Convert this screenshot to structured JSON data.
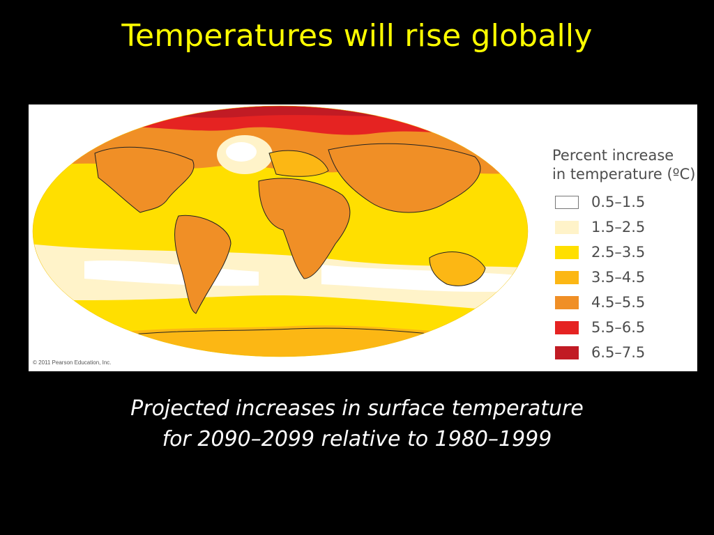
{
  "slide": {
    "title": "Temperatures will rise globally",
    "caption_line1": "Projected increases in surface temperature",
    "caption_line2": "for 2090–2099 relative to 1980–1999"
  },
  "figure": {
    "copyright": "© 2011 Pearson Education, Inc.",
    "legend": {
      "title_line1": "Percent increase",
      "title_line2": "in temperature (ºC)",
      "items": [
        {
          "label": "0.5–1.5",
          "color": "#ffffff"
        },
        {
          "label": "1.5–2.5",
          "color": "#fff3c9"
        },
        {
          "label": "2.5–3.5",
          "color": "#ffdf00"
        },
        {
          "label": "3.5–4.5",
          "color": "#fcb714"
        },
        {
          "label": "4.5–5.5",
          "color": "#f08f26"
        },
        {
          "label": "5.5–6.5",
          "color": "#e52322"
        },
        {
          "label": "6.5–7.5",
          "color": "#c11b24"
        }
      ]
    }
  }
}
